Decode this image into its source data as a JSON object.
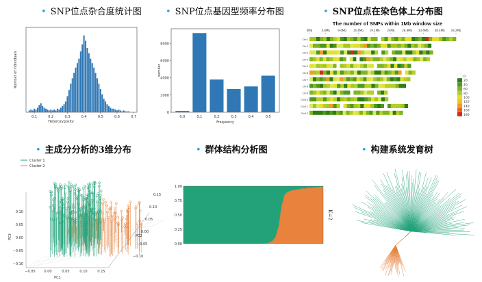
{
  "titles": {
    "t1": "SNP位点杂合度统计图",
    "t2": "SNP位点基因型频率分布图",
    "t3": "SNP位点在染色体上分布图",
    "t4": "主成分分析的3维分布",
    "t5": "群体结构分析图",
    "t6": "构建系统发育树"
  },
  "colors": {
    "bullet": "#2aa6d8",
    "bar": "#2f78b5",
    "teal": "#23a27a",
    "orange": "#e8823c"
  },
  "chart_data": [
    {
      "type": "bar",
      "name": "heterozygosity-histogram",
      "xlabel": "Heterozygosity",
      "ylabel": "Number of individuals",
      "xticks": [
        "0.1",
        "0.2",
        "0.3",
        "0.4",
        "0.5",
        "0.6",
        "0.7"
      ],
      "xlim": [
        0.05,
        0.72
      ],
      "ylim": [
        0,
        95
      ],
      "x": [
        0.07,
        0.08,
        0.09,
        0.1,
        0.11,
        0.12,
        0.13,
        0.14,
        0.15,
        0.16,
        0.17,
        0.18,
        0.19,
        0.2,
        0.21,
        0.22,
        0.23,
        0.24,
        0.25,
        0.26,
        0.27,
        0.28,
        0.29,
        0.3,
        0.31,
        0.32,
        0.33,
        0.34,
        0.35,
        0.36,
        0.37,
        0.38,
        0.39,
        0.4,
        0.41,
        0.42,
        0.43,
        0.44,
        0.45,
        0.46,
        0.47,
        0.48,
        0.49,
        0.5,
        0.51,
        0.52,
        0.53,
        0.54,
        0.55,
        0.56,
        0.57,
        0.58,
        0.59,
        0.6,
        0.61,
        0.62,
        0.63,
        0.64,
        0.65,
        0.66,
        0.67
      ],
      "values": [
        2,
        3,
        2,
        4,
        3,
        5,
        8,
        10,
        7,
        5,
        4,
        3,
        2,
        3,
        2,
        3,
        2,
        4,
        3,
        5,
        7,
        9,
        12,
        18,
        25,
        32,
        38,
        44,
        50,
        55,
        60,
        68,
        76,
        86,
        80,
        72,
        66,
        60,
        55,
        50,
        44,
        38,
        32,
        26,
        20,
        15,
        12,
        9,
        7,
        5,
        4,
        4,
        3,
        2,
        3,
        2,
        1,
        2,
        1,
        1,
        1
      ]
    },
    {
      "type": "bar",
      "name": "genotype-frequency",
      "xlabel": "Frequency",
      "ylabel": "number",
      "categories": [
        "0.0",
        "0.1",
        "0.2",
        "0.3",
        "0.4",
        "0.5"
      ],
      "values": [
        150,
        9200,
        3800,
        2700,
        3000,
        4250
      ],
      "yticks": [
        "0",
        "2000",
        "4000",
        "6000",
        "8000"
      ],
      "ylim": [
        0,
        9700
      ]
    },
    {
      "type": "heatmap",
      "name": "snp-density",
      "title": "The number of SNPs within 1Mb window size",
      "xticks": [
        "0Mb",
        "4.8Mb",
        "9.6Mb",
        "14.4Mb",
        "19.2Mb",
        "24Mb",
        "28.8Mb",
        "33.6Mb",
        "38.4Mb",
        "43.2Mb"
      ],
      "chromosomes": [
        "Chr1",
        "Chr2",
        "Chr3",
        "Chr4",
        "Chr5",
        "Chr6",
        "Chr7",
        "Chr8",
        "Chr9",
        "Chr10",
        "Chr11",
        "Chr12"
      ],
      "lengths": [
        43.2,
        35.9,
        36.4,
        35.5,
        29.9,
        31.2,
        29.7,
        28.4,
        23.0,
        23.2,
        29.0,
        27.5
      ],
      "legend": [
        "0",
        "20",
        "40",
        "60",
        "80",
        "100",
        "120",
        "140",
        "160",
        "180"
      ],
      "legend_colors": [
        "#ffffff",
        "#2f7d13",
        "#4e9a1a",
        "#7fb521",
        "#b5cf26",
        "#e2e02a",
        "#f5c325",
        "#f29b1f",
        "#ea6517",
        "#d42a14"
      ]
    },
    {
      "type": "scatter",
      "name": "pca-3d",
      "xlabel": "PC1",
      "ylabel": "PC3",
      "zlabel": "PC2",
      "legend": [
        "Cluster 1",
        "Cluster 2"
      ],
      "pc1_ticks": [
        "−0.05",
        "0.00",
        "0.05",
        "0.10",
        "0.15"
      ],
      "pc2_ticks": [
        "0.15",
        "0.10",
        "0.05",
        "0.00",
        "−0.05",
        "−0.10"
      ],
      "pc3_ticks": [
        "0.10",
        "0.05",
        "0.00",
        "−0.05",
        "−0.10"
      ],
      "clusters": [
        {
          "name": "Cluster 1",
          "count": 150
        },
        {
          "name": "Cluster 2",
          "count": 90
        }
      ]
    },
    {
      "type": "area",
      "name": "structure-plot",
      "ylabel": "K=2",
      "yticks": [
        "1.00",
        "0.75",
        "0.50",
        "0.25",
        "0.00"
      ],
      "ylim": [
        0,
        1
      ],
      "orange_share": [
        0.0,
        0.0,
        0.0,
        0.0,
        0.0,
        0.0,
        0.0,
        0.0,
        0.0,
        0.0,
        0.0,
        0.0,
        0.0,
        0.0,
        0.0,
        0.0,
        0.0,
        0.0,
        0.0,
        0.0,
        0.0,
        0.0,
        0.0,
        0.0,
        0.0,
        0.0,
        0.0,
        0.0,
        0.01,
        0.02,
        0.05,
        0.12,
        0.3,
        0.65,
        0.85,
        0.9,
        0.92,
        0.93,
        0.94,
        0.95,
        0.96,
        0.96,
        0.97,
        0.97,
        0.98,
        0.98,
        0.99,
        0.99
      ]
    },
    {
      "type": "tree",
      "name": "phylogenetic-tree",
      "clades": [
        {
          "name": "clade-1",
          "color": "teal",
          "leaves": 110
        },
        {
          "name": "clade-2",
          "color": "orange",
          "leaves": 32
        }
      ]
    }
  ]
}
